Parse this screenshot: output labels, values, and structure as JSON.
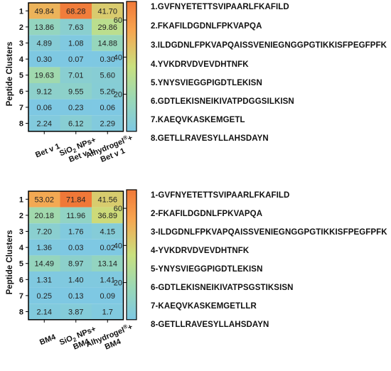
{
  "chart_data": [
    {
      "type": "heatmap",
      "ylabel": "Peptide Clusters",
      "rows": [
        "1",
        "2",
        "3",
        "4",
        "5",
        "6",
        "7",
        "8"
      ],
      "columns": [
        {
          "line1": "Bet v 1",
          "line2": "",
          "sup": ""
        },
        {
          "line1": "SiO",
          "sub": "2",
          "rest": " NPs+",
          "line2": "Bet v 1"
        },
        {
          "line1": "Alhydrogel",
          "sup": "®",
          "rest": "+",
          "line2": "Bet v 1"
        }
      ],
      "values": [
        [
          49.84,
          68.28,
          41.7
        ],
        [
          13.86,
          7.63,
          29.86
        ],
        [
          4.89,
          1.08,
          14.88
        ],
        [
          0.3,
          0.07,
          0.3
        ],
        [
          19.63,
          7.01,
          5.6
        ],
        [
          9.12,
          9.55,
          5.26
        ],
        [
          0.06,
          0.23,
          0.06
        ],
        [
          2.24,
          6.12,
          2.29
        ]
      ],
      "value_labels": [
        [
          "49.84",
          "68.28",
          "41.70"
        ],
        [
          "13.86",
          "7.63",
          "29.86"
        ],
        [
          "4.89",
          "1.08",
          "14.88"
        ],
        [
          "0.30",
          "0.07",
          "0.30"
        ],
        [
          "19.63",
          "7.01",
          "5.60"
        ],
        [
          "9.12",
          "9.55",
          "5.26"
        ],
        [
          "0.06",
          "0.23",
          "0.06"
        ],
        [
          "2.24",
          "6.12",
          "2.29"
        ]
      ],
      "colorbar": {
        "ticks": [
          "20",
          "40",
          "60"
        ],
        "tick_values": [
          20,
          40,
          60
        ],
        "range": [
          0,
          70
        ],
        "colors": [
          "#7ec8e3",
          "#9ad8b5",
          "#c9e07e",
          "#f7a44f",
          "#f07838"
        ]
      },
      "sequences": [
        "1.GVFNYETETTSVIPAARLFKAFILD",
        "2.FKAFILDGDNLFPKVAPQA",
        "3.ILDGDNLFPKVAPQAISSVENIEGNGGPGTIKKISFPEGFPFK",
        "4.YVKDRVDVEVDHTNFK",
        "5.YNYSVIEGGPIGDTLEKISN",
        "6.GDTLEKISNEIKIVATPDGGSILKISN",
        "7.KAEQVKASKEMGETL",
        "8.GETLLRAVESYLLAHSDAYN"
      ]
    },
    {
      "type": "heatmap",
      "ylabel": "Peptide Clusters",
      "rows": [
        "1",
        "2",
        "3",
        "4",
        "5",
        "6",
        "7",
        "8"
      ],
      "columns": [
        {
          "line1": "BM4",
          "line2": "",
          "sup": ""
        },
        {
          "line1": "SiO",
          "sub": "2",
          "rest": " NPs+",
          "line2": "BM4"
        },
        {
          "line1": "Alhydrogel",
          "sup": "®",
          "rest": "+",
          "line2": "BM4"
        }
      ],
      "values": [
        [
          53.02,
          71.84,
          41.56
        ],
        [
          20.18,
          11.96,
          36.89
        ],
        [
          7.2,
          1.76,
          4.15
        ],
        [
          1.36,
          0.03,
          0.02
        ],
        [
          14.49,
          8.97,
          13.14
        ],
        [
          1.31,
          1.4,
          1.41
        ],
        [
          0.25,
          0.13,
          0.09
        ],
        [
          2.14,
          3.87,
          1.7
        ]
      ],
      "value_labels": [
        [
          "53.02",
          "71.84",
          "41.56"
        ],
        [
          "20.18",
          "11.96",
          "36.89"
        ],
        [
          "7.20",
          "1.76",
          "4.15"
        ],
        [
          "1.36",
          "0.03",
          "0.02"
        ],
        [
          "14.49",
          "8.97",
          "13.14"
        ],
        [
          "1.31",
          "1.40",
          "1.41"
        ],
        [
          "0.25",
          "0.13",
          "0.09"
        ],
        [
          "2.14",
          "3.87",
          "1.7"
        ]
      ],
      "colorbar": {
        "ticks": [
          "20",
          "40",
          "60"
        ],
        "tick_values": [
          20,
          40,
          60
        ],
        "range": [
          0,
          70
        ],
        "colors": [
          "#7ec8e3",
          "#9ad8b5",
          "#c9e07e",
          "#f7a44f",
          "#f07838"
        ]
      },
      "sequences": [
        "1-GVFNYETETTSVIPAARLFKAFILD",
        "2-FKAFILDGDNLFPKVAPQA",
        "3-ILDGDNLFPKVAPQAISSVENIEGNGGPGTIKKISFPEGFPFK",
        "4-YVKDRVDVEVDHTNFK",
        "5-YNYSVIEGGPIGDTLEKISN",
        "6-GDTLEKISNEIKIVATPSGSTIKSISN",
        "7-KAEQVKASKEMGETLLR",
        "8-GETLLRAVESYLLAHSDAYN"
      ]
    }
  ]
}
